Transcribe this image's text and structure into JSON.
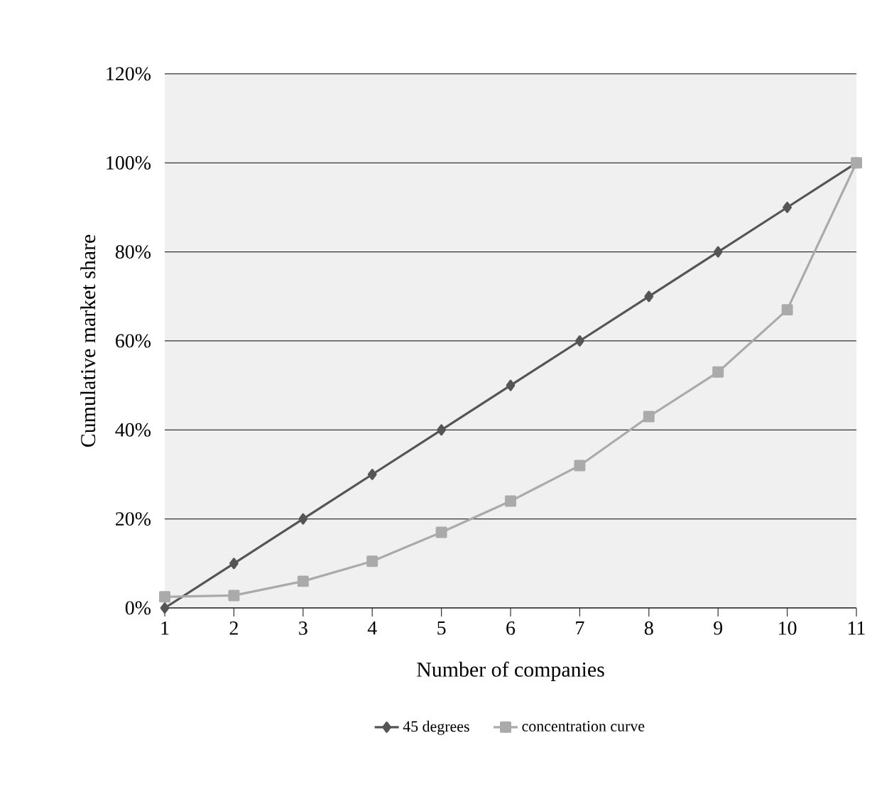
{
  "chart_data": {
    "type": "line",
    "xlabel": "Number of companies",
    "ylabel": "Cumulative market share",
    "categories": [
      "1",
      "2",
      "3",
      "4",
      "5",
      "6",
      "7",
      "8",
      "9",
      "10",
      "11"
    ],
    "series": [
      {
        "name": "45 degrees",
        "color": "#555555",
        "marker": "diamond",
        "values": [
          0,
          10,
          20,
          30,
          40,
          50,
          60,
          70,
          80,
          90,
          100
        ]
      },
      {
        "name": "concentration curve",
        "color": "#aaaaaa",
        "marker": "square",
        "values": [
          2.5,
          2.8,
          6,
          10.5,
          17,
          24,
          32,
          43,
          53,
          67,
          100
        ]
      }
    ],
    "ylim": [
      0,
      120
    ],
    "yticks": [
      {
        "value": 0,
        "label": "0%"
      },
      {
        "value": 20,
        "label": "20%"
      },
      {
        "value": 40,
        "label": "40%"
      },
      {
        "value": 60,
        "label": "60%"
      },
      {
        "value": 80,
        "label": "80%"
      },
      {
        "value": 100,
        "label": "100%"
      },
      {
        "value": 120,
        "label": "120%"
      }
    ],
    "grid": "y",
    "legend": "bottom",
    "line_style": "solid"
  }
}
